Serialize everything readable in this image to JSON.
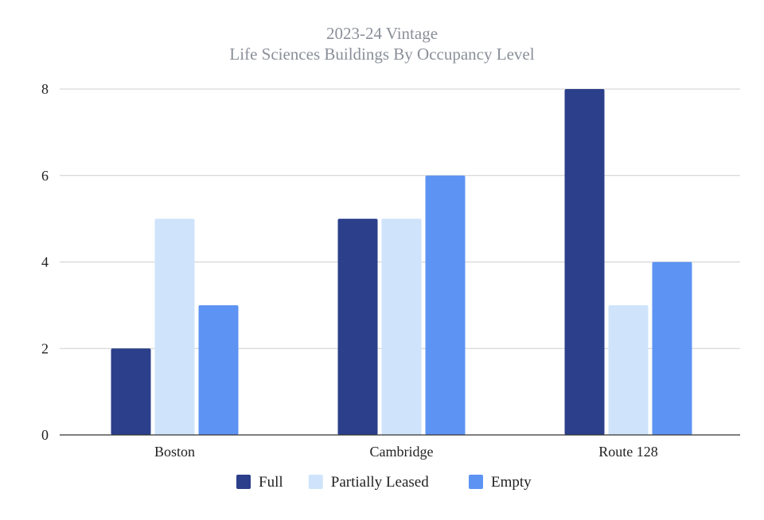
{
  "chart_data": {
    "type": "bar",
    "title": [
      "2023-24 Vintage",
      "Life Sciences Buildings By Occupancy Level"
    ],
    "xlabel": "",
    "ylabel": "",
    "categories": [
      "Boston",
      "Cambridge",
      "Route 128"
    ],
    "series": [
      {
        "name": "Full",
        "values": [
          2,
          5,
          8
        ],
        "color": "#2b3f8a"
      },
      {
        "name": "Partially Leased",
        "values": [
          5,
          5,
          3
        ],
        "color": "#cfe4fb"
      },
      {
        "name": "Empty",
        "values": [
          3,
          6,
          4
        ],
        "color": "#5d93f3"
      }
    ],
    "ylim": [
      0,
      8
    ],
    "yticks": [
      "0",
      "2",
      "4",
      "6",
      "8"
    ],
    "grid": true,
    "legend_position": "bottom"
  }
}
